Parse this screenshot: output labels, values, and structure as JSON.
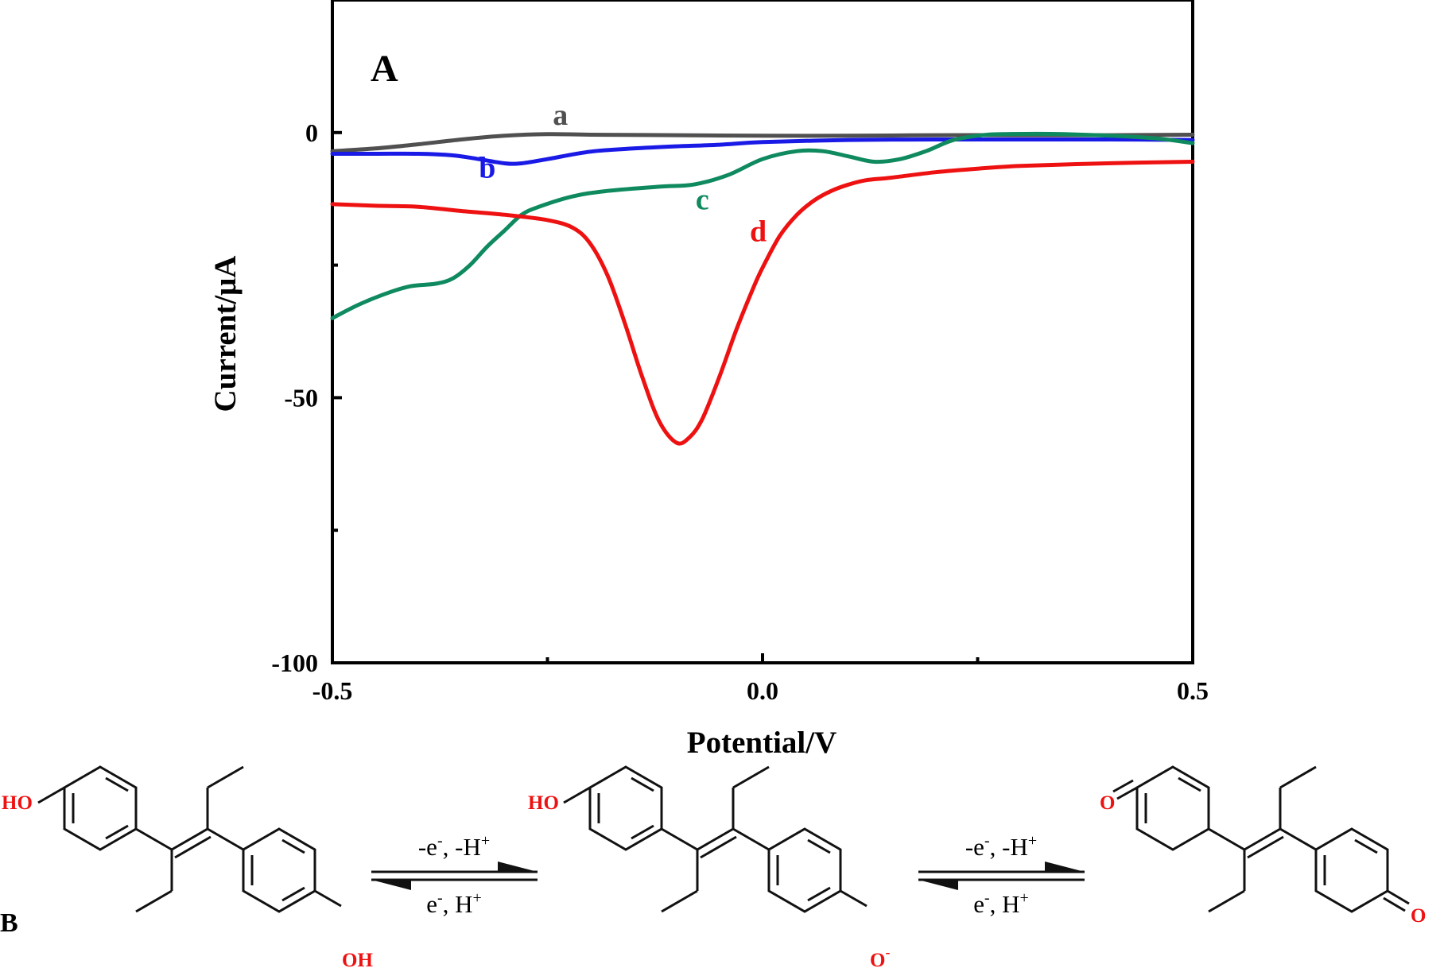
{
  "chart_data": {
    "type": "line",
    "panel_label": "A",
    "title": "",
    "xlabel": "Potential/V",
    "ylabel": "Current/μA",
    "xlim": [
      -0.5,
      0.5
    ],
    "ylim": [
      -100,
      25
    ],
    "x_ticks": [
      {
        "value": -0.5,
        "label": "-0.5"
      },
      {
        "value": 0.0,
        "label": "0.0"
      },
      {
        "value": 0.5,
        "label": "0.5"
      }
    ],
    "x_minor_ticks": [
      -0.25,
      0.25
    ],
    "y_ticks": [
      {
        "value": 0,
        "label": "0"
      },
      {
        "value": -50,
        "label": "-50"
      },
      {
        "value": -100,
        "label": "-100"
      }
    ],
    "y_minor_ticks": [
      -25,
      -75
    ],
    "series": [
      {
        "name": "a",
        "color": "#505050",
        "label_at": [
          -0.235,
          1.5
        ],
        "x": [
          -0.5,
          -0.45,
          -0.4,
          -0.35,
          -0.3,
          -0.25,
          -0.2,
          -0.1,
          0.0,
          0.1,
          0.2,
          0.3,
          0.4,
          0.5
        ],
        "y": [
          -3.5,
          -3.0,
          -2.2,
          -1.3,
          -0.6,
          -0.3,
          -0.4,
          -0.5,
          -0.6,
          -0.6,
          -0.5,
          -0.5,
          -0.5,
          -0.4
        ]
      },
      {
        "name": "b",
        "color": "#1a1ae6",
        "label_at": [
          -0.32,
          -8.5
        ],
        "x": [
          -0.5,
          -0.45,
          -0.4,
          -0.36,
          -0.33,
          -0.3,
          -0.28,
          -0.25,
          -0.2,
          -0.15,
          -0.1,
          -0.05,
          0.0,
          0.1,
          0.2,
          0.3,
          0.4,
          0.5
        ],
        "y": [
          -4.0,
          -4.0,
          -4.0,
          -4.3,
          -5.0,
          -5.8,
          -5.8,
          -5.0,
          -3.6,
          -3.0,
          -2.6,
          -2.3,
          -1.8,
          -1.4,
          -1.3,
          -1.3,
          -1.3,
          -1.4
        ]
      },
      {
        "name": "c",
        "color": "#0f8a5f",
        "label_at": [
          -0.07,
          -14.5
        ],
        "x": [
          -0.5,
          -0.47,
          -0.44,
          -0.41,
          -0.38,
          -0.36,
          -0.34,
          -0.32,
          -0.3,
          -0.28,
          -0.26,
          -0.22,
          -0.18,
          -0.12,
          -0.08,
          -0.04,
          0.0,
          0.04,
          0.07,
          0.1,
          0.13,
          0.16,
          0.19,
          0.22,
          0.25,
          0.28,
          0.35,
          0.45,
          0.5
        ],
        "y": [
          -35,
          -32.5,
          -30.5,
          -29,
          -28.5,
          -27.5,
          -25,
          -21.5,
          -18.5,
          -15.5,
          -14,
          -12,
          -11,
          -10.2,
          -9.8,
          -8,
          -5,
          -3.5,
          -3.5,
          -4.5,
          -5.5,
          -5.0,
          -3.5,
          -1.5,
          -0.6,
          -0.3,
          -0.3,
          -1.0,
          -2.0
        ]
      },
      {
        "name": "d",
        "color": "#ee1111",
        "label_at": [
          -0.005,
          -20.5
        ],
        "x": [
          -0.5,
          -0.45,
          -0.4,
          -0.35,
          -0.3,
          -0.25,
          -0.22,
          -0.2,
          -0.18,
          -0.16,
          -0.14,
          -0.12,
          -0.1,
          -0.085,
          -0.07,
          -0.05,
          -0.03,
          -0.01,
          0.0,
          0.02,
          0.04,
          0.06,
          0.08,
          0.1,
          0.12,
          0.15,
          0.2,
          0.25,
          0.3,
          0.4,
          0.5
        ],
        "y": [
          -13.5,
          -13.8,
          -14.0,
          -14.8,
          -15.5,
          -16.5,
          -18.0,
          -21.0,
          -27.0,
          -36.0,
          -46.0,
          -54.5,
          -58.5,
          -57.5,
          -54.0,
          -46.0,
          -37.0,
          -29.0,
          -25.5,
          -19.5,
          -15.5,
          -12.8,
          -11.0,
          -9.8,
          -9.0,
          -8.5,
          -7.5,
          -6.8,
          -6.3,
          -5.8,
          -5.5
        ]
      }
    ]
  },
  "scheme": {
    "panel_label": "B",
    "step1": {
      "top_main": "-e",
      "top_sup": "-",
      "top_rest": ", -H",
      "top_sup2": "+",
      "bottom_main": "e",
      "bottom_sup": "-",
      "bottom_rest": ", H",
      "bottom_sup2": "+"
    },
    "step2": {
      "top_main": "-e",
      "top_sup": "-",
      "top_rest": ", -H",
      "top_sup2": "+",
      "bottom_main": "e",
      "bottom_sup": "-",
      "bottom_rest": ", H",
      "bottom_sup2": "+"
    },
    "mol1": {
      "sub_top": "HO",
      "sub_bottom": "OH"
    },
    "mol2": {
      "sub_top": "HO",
      "sub_bottom": "O",
      "sub_bottom_sup": "-"
    },
    "mol3": {
      "sub_top": "O",
      "sub_bottom": "O"
    },
    "heteroatom_color": "#ee1111"
  }
}
